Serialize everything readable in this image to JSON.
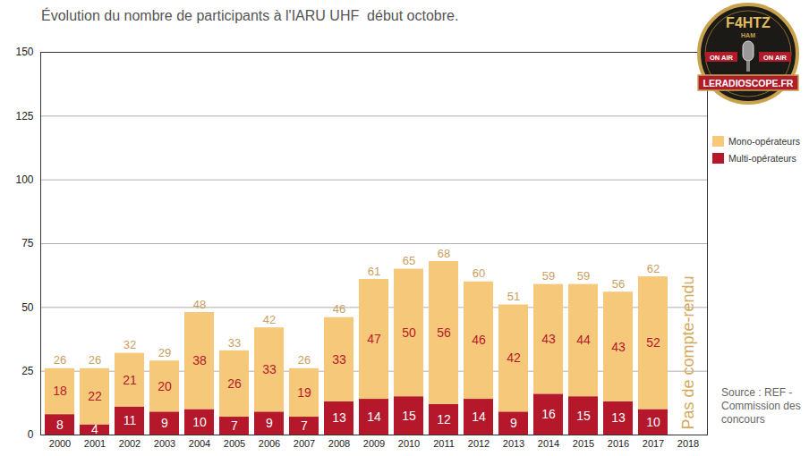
{
  "chart_data": {
    "type": "bar",
    "title": "Évolution du nombre de participants à l'IARU UHF  début octobre.",
    "categories": [
      "2000",
      "2001",
      "2002",
      "2003",
      "2004",
      "2005",
      "2006",
      "2007",
      "2008",
      "2009",
      "2010",
      "2011",
      "2012",
      "2013",
      "2014",
      "2015",
      "2016",
      "2017",
      "2018"
    ],
    "series": [
      {
        "name": "Mono-opérateurs",
        "color": "#f6c97a",
        "values": [
          18,
          22,
          21,
          20,
          38,
          26,
          33,
          19,
          33,
          47,
          50,
          56,
          46,
          42,
          43,
          44,
          43,
          52,
          null
        ]
      },
      {
        "name": "Multi-opérateurs",
        "color": "#b5182b",
        "values": [
          8,
          4,
          11,
          9,
          10,
          7,
          9,
          7,
          13,
          14,
          15,
          12,
          14,
          9,
          16,
          15,
          13,
          10,
          null
        ]
      }
    ],
    "totals": [
      26,
      26,
      32,
      29,
      48,
      33,
      42,
      26,
      46,
      61,
      65,
      68,
      60,
      51,
      59,
      59,
      56,
      62,
      null
    ],
    "ylim": [
      0,
      150
    ],
    "yticks": [
      0,
      25,
      50,
      75,
      100,
      125,
      150
    ],
    "grid": true,
    "stacked": true,
    "data_labels": true,
    "legend": "right",
    "annotations": [
      "Pas de compte-rendu",
      "Source : REF - Commission des concours"
    ],
    "logo": [
      "F4HTZ",
      "HAM",
      "ON AIR",
      "LERADIOSCOPE.FR"
    ]
  }
}
